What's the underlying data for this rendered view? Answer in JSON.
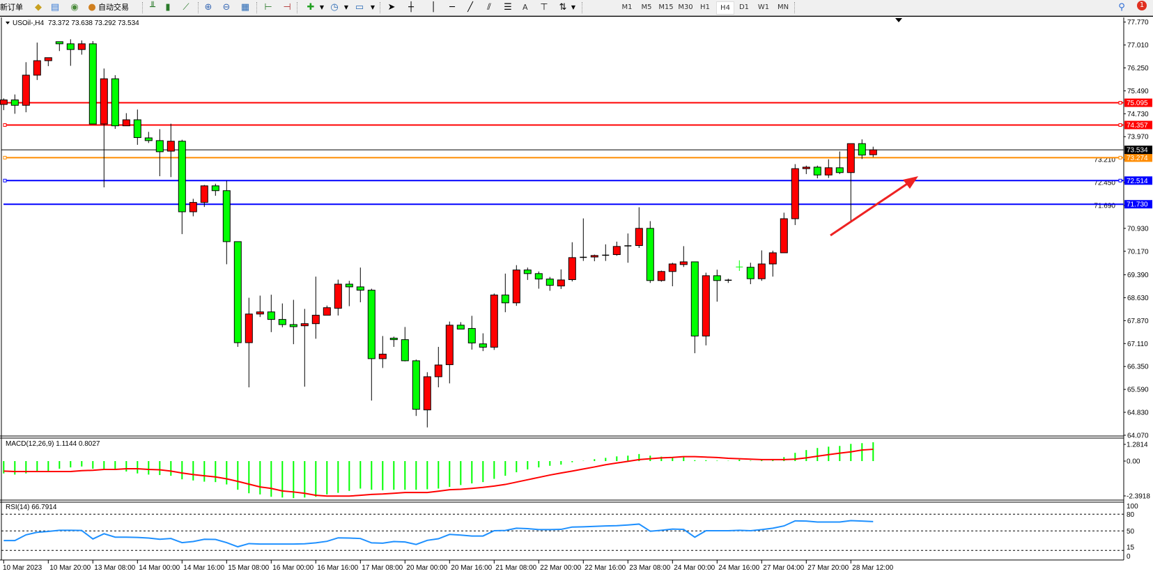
{
  "toolbar": {
    "new_order_label": "新订单",
    "auto_trading_label": "自动交易",
    "icons": [
      "profiles-icon",
      "market-watch-icon",
      "signals-icon",
      "bar-chart-icon",
      "candlestick-icon",
      "line-chart-icon",
      "zoom-in-icon",
      "zoom-out-icon",
      "tile-windows-icon",
      "chart-shift-icon",
      "autoscroll-icon",
      "indicators-icon",
      "periods-icon",
      "templates-icon",
      "cursor-icon",
      "crosshair-icon",
      "vertical-line-icon",
      "horizontal-line-icon",
      "trendline-icon",
      "equidistant-channel-icon",
      "fibonacci-icon",
      "text-icon",
      "text-label-icon",
      "arrows-icon"
    ],
    "text_tool_label": "A",
    "timeframes": [
      "M1",
      "M5",
      "M15",
      "M30",
      "H1",
      "H4",
      "D1",
      "W1",
      "MN"
    ],
    "active_timeframe": "H4",
    "notification_count": "1"
  },
  "chart": {
    "symbol_header": "USOil-,H4",
    "ohlc_header": "73.372 73.638 73.292 73.534",
    "bull_color": "#ff0000",
    "bear_color": "#00ff00"
  },
  "chart_data": [
    {
      "type": "candlestick",
      "title": "USOil-,H4",
      "ylim": [
        64.07,
        77.77
      ],
      "y_ticks": [
        "77.770",
        "77.010",
        "76.250",
        "75.490",
        "74.730",
        "73.970",
        "73.210",
        "72.450",
        "71.690",
        "70.930",
        "70.170",
        "69.390",
        "68.630",
        "67.870",
        "67.110",
        "66.350",
        "65.590",
        "64.830",
        "64.070"
      ],
      "x_tick_labels": [
        "10 Mar 2023",
        "10 Mar 20:00",
        "13 Mar 08:00",
        "14 Mar 00:00",
        "14 Mar 16:00",
        "15 Mar 08:00",
        "16 Mar 00:00",
        "16 Mar 16:00",
        "17 Mar 08:00",
        "20 Mar 00:00",
        "20 Mar 16:00",
        "21 Mar 08:00",
        "22 Mar 00:00",
        "22 Mar 16:00",
        "23 Mar 08:00",
        "24 Mar 00:00",
        "24 Mar 16:00",
        "27 Mar 04:00",
        "27 Mar 20:00",
        "28 Mar 12:00"
      ],
      "x_tick_every_bars": 4,
      "ohlc": [
        [
          75.04,
          75.24,
          74.85,
          75.19
        ],
        [
          75.19,
          75.37,
          74.73,
          75.01
        ],
        [
          75.01,
          76.44,
          74.78,
          76.01
        ],
        [
          76.01,
          77.09,
          75.85,
          76.49
        ],
        [
          76.49,
          76.59,
          76.31,
          76.59
        ],
        [
          77.12,
          77.12,
          76.81,
          77.05
        ],
        [
          77.05,
          77.2,
          76.32,
          76.86
        ],
        [
          76.86,
          77.16,
          76.69,
          77.05
        ],
        [
          77.05,
          77.14,
          74.39,
          74.39
        ],
        [
          74.39,
          76.23,
          72.29,
          75.89
        ],
        [
          75.89,
          76.01,
          74.23,
          74.33
        ],
        [
          74.33,
          74.75,
          74.33,
          74.53
        ],
        [
          74.53,
          74.87,
          73.7,
          73.94
        ],
        [
          73.93,
          74.13,
          73.76,
          73.84
        ],
        [
          73.84,
          74.22,
          72.66,
          73.47
        ],
        [
          73.49,
          74.4,
          72.63,
          73.82
        ],
        [
          73.82,
          73.87,
          70.74,
          71.48
        ],
        [
          71.48,
          71.91,
          71.33,
          71.79
        ],
        [
          71.79,
          72.37,
          71.64,
          72.34
        ],
        [
          72.34,
          72.41,
          72.01,
          72.18
        ],
        [
          72.18,
          72.51,
          69.74,
          70.49
        ],
        [
          70.49,
          70.49,
          67.0,
          67.14
        ],
        [
          67.14,
          68.63,
          65.66,
          68.09
        ],
        [
          68.09,
          68.7,
          67.99,
          68.16
        ],
        [
          68.16,
          68.73,
          67.49,
          67.91
        ],
        [
          67.91,
          68.44,
          67.65,
          67.74
        ],
        [
          67.74,
          68.56,
          67.09,
          67.67
        ],
        [
          67.7,
          68.26,
          65.68,
          67.77
        ],
        [
          67.77,
          69.33,
          67.27,
          68.05
        ],
        [
          68.05,
          68.37,
          68.05,
          68.3
        ],
        [
          68.28,
          69.23,
          68.04,
          69.08
        ],
        [
          69.08,
          69.19,
          68.35,
          68.99
        ],
        [
          68.99,
          69.63,
          68.48,
          68.88
        ],
        [
          68.88,
          68.93,
          65.22,
          66.61
        ],
        [
          66.61,
          67.36,
          66.3,
          66.76
        ],
        [
          67.29,
          67.34,
          67.0,
          67.24
        ],
        [
          67.24,
          67.66,
          66.52,
          66.54
        ],
        [
          66.54,
          66.58,
          64.71,
          64.93
        ],
        [
          64.91,
          66.16,
          64.33,
          66.01
        ],
        [
          66.01,
          67.0,
          65.66,
          66.4
        ],
        [
          66.41,
          67.84,
          65.79,
          67.72
        ],
        [
          67.72,
          67.82,
          67.59,
          67.59
        ],
        [
          67.61,
          68.03,
          66.91,
          67.13
        ],
        [
          67.1,
          67.45,
          66.86,
          66.99
        ],
        [
          66.99,
          68.77,
          66.9,
          68.72
        ],
        [
          68.72,
          69.43,
          68.15,
          68.46
        ],
        [
          68.46,
          69.71,
          68.36,
          69.55
        ],
        [
          69.55,
          69.63,
          69.22,
          69.43
        ],
        [
          69.43,
          69.5,
          68.93,
          69.25
        ],
        [
          69.25,
          69.32,
          68.86,
          69.04
        ],
        [
          69.02,
          69.57,
          68.92,
          69.22
        ],
        [
          69.23,
          70.47,
          69.17,
          69.96
        ],
        [
          69.97,
          71.26,
          69.85,
          69.97
        ],
        [
          69.98,
          70.06,
          69.84,
          70.03
        ],
        [
          70.04,
          70.4,
          69.85,
          70.04
        ],
        [
          70.06,
          70.49,
          70.02,
          70.33
        ],
        [
          70.35,
          70.76,
          69.79,
          70.35
        ],
        [
          70.36,
          71.63,
          70.28,
          70.93
        ],
        [
          70.93,
          71.17,
          69.12,
          69.2
        ],
        [
          69.2,
          69.53,
          69.16,
          69.5
        ],
        [
          69.5,
          69.79,
          69.01,
          69.75
        ],
        [
          69.73,
          70.34,
          69.65,
          69.82
        ],
        [
          69.82,
          69.82,
          66.79,
          67.36
        ],
        [
          67.36,
          69.46,
          67.05,
          69.36
        ],
        [
          69.36,
          69.56,
          68.5,
          69.2
        ],
        [
          69.21,
          69.26,
          69.12,
          69.21
        ],
        [
          69.65,
          69.87,
          69.52,
          69.65
        ],
        [
          69.64,
          69.79,
          69.08,
          69.26
        ],
        [
          69.26,
          70.2,
          69.19,
          69.75
        ],
        [
          69.75,
          70.19,
          69.33,
          70.12
        ],
        [
          70.12,
          71.45,
          70.12,
          71.25
        ],
        [
          71.25,
          73.06,
          71.04,
          72.91
        ],
        [
          72.91,
          73.01,
          72.73,
          72.96
        ],
        [
          72.96,
          73.01,
          72.59,
          72.7
        ],
        [
          72.7,
          73.22,
          72.6,
          72.94
        ],
        [
          72.94,
          73.48,
          72.73,
          72.78
        ],
        [
          72.78,
          73.74,
          71.14,
          73.74
        ],
        [
          73.74,
          73.88,
          73.23,
          73.36
        ],
        [
          73.372,
          73.638,
          73.292,
          73.534
        ]
      ],
      "current_price": {
        "value": 73.534,
        "label": "73.534",
        "color": "#000000"
      },
      "horizontal_lines": [
        {
          "value": 75.095,
          "label": "75.095",
          "color": "#ff0000",
          "markers": true
        },
        {
          "value": 74.357,
          "label": "74.357",
          "color": "#ff0000",
          "markers": true
        },
        {
          "value": 73.274,
          "label": "73.274",
          "color": "#ff8c00",
          "markers": true
        },
        {
          "value": 72.514,
          "label": "72.514",
          "color": "#0000ff",
          "markers": true
        },
        {
          "value": 71.73,
          "label": "71.730",
          "color": "#0000ff",
          "markers": false
        }
      ],
      "annotation_arrow": {
        "color": "#ee2222",
        "direction": "up-right"
      }
    },
    {
      "type": "bar",
      "title": "MACD(12,26,9) 1.1144 0.8027",
      "ylim": [
        -2.3918,
        1.2814
      ],
      "y_ticks": [
        "1.2814",
        "0.00",
        "-2.3918"
      ],
      "series": [
        {
          "kind": "histogram",
          "color": "#00ff00",
          "values": [
            -0.84,
            -0.92,
            -0.84,
            -0.68,
            -0.68,
            -0.52,
            -0.43,
            -0.37,
            -0.52,
            -0.57,
            -0.57,
            -0.71,
            -0.84,
            -0.92,
            -0.95,
            -1.0,
            -1.24,
            -1.32,
            -1.4,
            -1.43,
            -1.59,
            -1.95,
            -2.19,
            -2.27,
            -2.43,
            -2.48,
            -2.52,
            -2.48,
            -2.43,
            -2.27,
            -2.16,
            -2.03,
            -1.87,
            -1.95,
            -1.98,
            -1.95,
            -1.95,
            -1.95,
            -1.92,
            -1.87,
            -1.76,
            -1.63,
            -1.52,
            -1.43,
            -1.21,
            -1.0,
            -0.76,
            -0.57,
            -0.43,
            -0.32,
            -0.24,
            -0.08,
            0.02,
            0.13,
            0.22,
            0.32,
            0.37,
            0.48,
            0.37,
            0.3,
            0.27,
            0.27,
            0.06,
            0.06,
            0.03,
            0.02,
            0.1,
            0.03,
            0.13,
            0.1,
            0.27,
            0.56,
            0.75,
            0.89,
            0.98,
            1.03,
            1.17,
            1.22,
            1.2814
          ]
        },
        {
          "kind": "line",
          "color": "#ff0000",
          "values": [
            -0.68,
            -0.71,
            -0.71,
            -0.71,
            -0.71,
            -0.71,
            -0.71,
            -0.65,
            -0.63,
            -0.57,
            -0.57,
            -0.52,
            -0.52,
            -0.57,
            -0.59,
            -0.68,
            -0.81,
            -0.92,
            -1.0,
            -1.08,
            -1.21,
            -1.38,
            -1.57,
            -1.76,
            -1.86,
            -2.03,
            -2.1,
            -2.19,
            -2.33,
            -2.38,
            -2.38,
            -2.38,
            -2.33,
            -2.27,
            -2.24,
            -2.19,
            -2.14,
            -2.14,
            -2.14,
            -2.05,
            -1.95,
            -1.92,
            -1.86,
            -1.79,
            -1.7,
            -1.59,
            -1.43,
            -1.27,
            -1.11,
            -0.95,
            -0.81,
            -0.68,
            -0.54,
            -0.4,
            -0.25,
            -0.13,
            -0.02,
            0.1,
            0.16,
            0.22,
            0.25,
            0.3,
            0.3,
            0.27,
            0.24,
            0.19,
            0.16,
            0.13,
            0.1,
            0.1,
            0.1,
            0.13,
            0.22,
            0.33,
            0.44,
            0.54,
            0.63,
            0.75,
            0.8027
          ]
        }
      ]
    },
    {
      "type": "line",
      "title": "RSI(14) 66.7914",
      "ylim": [
        0,
        100
      ],
      "y_ticks": [
        "100",
        "80",
        "50",
        "15",
        "0"
      ],
      "levels": [
        80,
        50,
        15
      ],
      "series": [
        {
          "color": "#1e90ff",
          "values": [
            32.7,
            32.7,
            43.0,
            47.5,
            49.1,
            51.2,
            51.2,
            50.8,
            35.6,
            45.0,
            38.8,
            38.8,
            38.4,
            37.2,
            35.1,
            36.4,
            29.0,
            31.0,
            35.1,
            34.7,
            29.0,
            21.6,
            27.3,
            26.5,
            26.5,
            26.5,
            26.5,
            26.9,
            28.6,
            31.4,
            37.6,
            37.2,
            36.4,
            28.6,
            28.1,
            31.0,
            30.2,
            25.7,
            33.1,
            36.0,
            43.8,
            42.6,
            40.9,
            40.9,
            50.4,
            50.8,
            54.9,
            54.1,
            52.4,
            52.4,
            52.8,
            57.0,
            57.4,
            58.2,
            59.0,
            59.4,
            60.7,
            62.3,
            49.5,
            51.2,
            53.3,
            52.8,
            38.8,
            50.4,
            50.4,
            50.4,
            51.2,
            50.4,
            52.4,
            54.9,
            59.0,
            68.1,
            67.7,
            66.0,
            66.0,
            66.0,
            68.5,
            67.7,
            66.79
          ]
        }
      ]
    }
  ]
}
